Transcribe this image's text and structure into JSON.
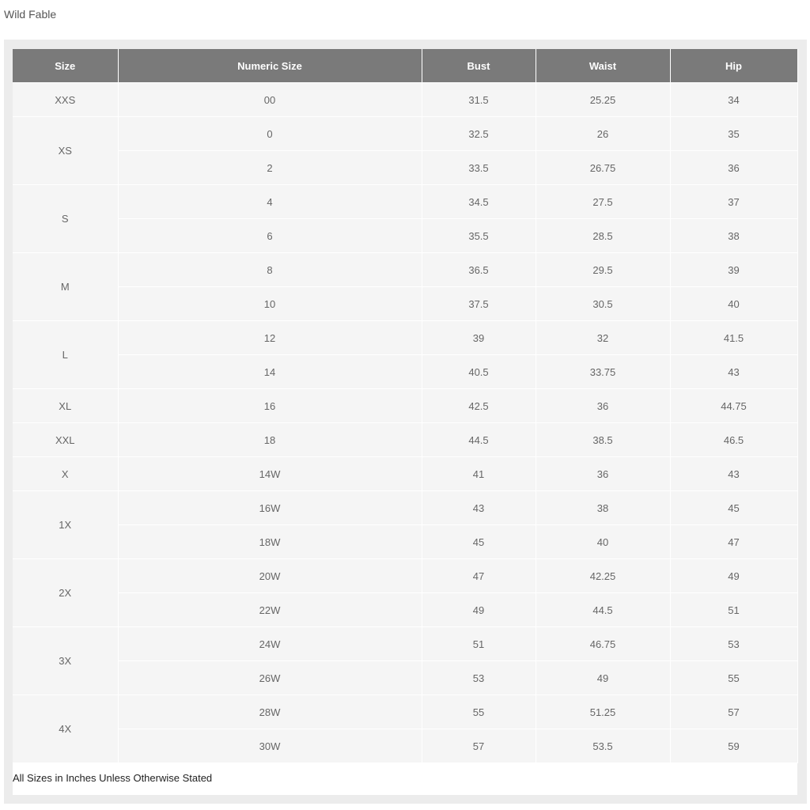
{
  "brand": "Wild Fable",
  "table": {
    "headers": [
      "Size",
      "Numeric Size",
      "Bust",
      "Waist",
      "Hip"
    ],
    "groups": [
      {
        "size": "XXS",
        "rows": [
          [
            "00",
            "31.5",
            "25.25",
            "34"
          ]
        ]
      },
      {
        "size": "XS",
        "rows": [
          [
            "0",
            "32.5",
            "26",
            "35"
          ],
          [
            "2",
            "33.5",
            "26.75",
            "36"
          ]
        ]
      },
      {
        "size": "S",
        "rows": [
          [
            "4",
            "34.5",
            "27.5",
            "37"
          ],
          [
            "6",
            "35.5",
            "28.5",
            "38"
          ]
        ]
      },
      {
        "size": "M",
        "rows": [
          [
            "8",
            "36.5",
            "29.5",
            "39"
          ],
          [
            "10",
            "37.5",
            "30.5",
            "40"
          ]
        ]
      },
      {
        "size": "L",
        "rows": [
          [
            "12",
            "39",
            "32",
            "41.5"
          ],
          [
            "14",
            "40.5",
            "33.75",
            "43"
          ]
        ]
      },
      {
        "size": "XL",
        "rows": [
          [
            "16",
            "42.5",
            "36",
            "44.75"
          ]
        ]
      },
      {
        "size": "XXL",
        "rows": [
          [
            "18",
            "44.5",
            "38.5",
            "46.5"
          ]
        ]
      },
      {
        "size": "X",
        "rows": [
          [
            "14W",
            "41",
            "36",
            "43"
          ]
        ]
      },
      {
        "size": "1X",
        "rows": [
          [
            "16W",
            "43",
            "38",
            "45"
          ],
          [
            "18W",
            "45",
            "40",
            "47"
          ]
        ]
      },
      {
        "size": "2X",
        "rows": [
          [
            "20W",
            "47",
            "42.25",
            "49"
          ],
          [
            "22W",
            "49",
            "44.5",
            "51"
          ]
        ]
      },
      {
        "size": "3X",
        "rows": [
          [
            "24W",
            "51",
            "46.75",
            "53"
          ],
          [
            "26W",
            "53",
            "49",
            "55"
          ]
        ]
      },
      {
        "size": "4X",
        "rows": [
          [
            "28W",
            "55",
            "51.25",
            "57"
          ],
          [
            "30W",
            "57",
            "53.5",
            "59"
          ]
        ]
      }
    ]
  },
  "note": "All Sizes in Inches Unless Otherwise Stated"
}
